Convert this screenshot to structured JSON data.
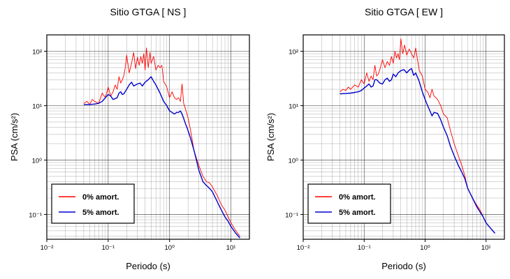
{
  "chart_data": [
    {
      "type": "line",
      "title": "Sitio GTGA [ NS ]",
      "xlabel": "Periodo (s)",
      "ylabel": "PSA (cm/s²)",
      "xscale": "log",
      "yscale": "log",
      "xlim": [
        0.01,
        20
      ],
      "ylim": [
        0.035,
        200
      ],
      "x_tick_labels": [
        "10⁻²",
        "10⁻¹",
        "10⁰",
        "10¹"
      ],
      "y_tick_labels": [
        "10⁻¹",
        "10⁰",
        "10¹",
        "10²"
      ],
      "grid": true,
      "legend_position": "bottom-left",
      "series": [
        {
          "name": "0% amort.",
          "color": "#ff0000",
          "x": [
            0.04,
            0.045,
            0.05,
            0.055,
            0.06,
            0.07,
            0.08,
            0.09,
            0.1,
            0.11,
            0.12,
            0.13,
            0.14,
            0.15,
            0.16,
            0.17,
            0.18,
            0.19,
            0.2,
            0.22,
            0.24,
            0.26,
            0.28,
            0.3,
            0.32,
            0.34,
            0.36,
            0.38,
            0.4,
            0.42,
            0.45,
            0.48,
            0.5,
            0.55,
            0.6,
            0.65,
            0.7,
            0.75,
            0.8,
            0.85,
            0.9,
            1.0,
            1.1,
            1.2,
            1.3,
            1.4,
            1.5,
            1.6,
            1.7,
            1.8,
            2.0,
            2.2,
            2.5,
            2.8,
            3.0,
            3.5,
            4.0,
            4.5,
            5.0,
            6.0,
            7.0,
            8.0,
            9.0,
            10.0,
            12.0,
            14.0
          ],
          "values": [
            11,
            12,
            10.5,
            13,
            12,
            11,
            17,
            14,
            22,
            15,
            18,
            24,
            20,
            34,
            26,
            30,
            36,
            50,
            85,
            40,
            60,
            95,
            48,
            78,
            55,
            80,
            60,
            90,
            45,
            115,
            50,
            95,
            60,
            80,
            45,
            55,
            50,
            55,
            28,
            25,
            22,
            14,
            18,
            14,
            13,
            14,
            12,
            25,
            11,
            9,
            6,
            3.5,
            1.5,
            1.0,
            0.8,
            0.5,
            0.4,
            0.38,
            0.32,
            0.22,
            0.15,
            0.12,
            0.09,
            0.07,
            0.05,
            0.04
          ]
        },
        {
          "name": "5% amort.",
          "color": "#0000cc",
          "x": [
            0.04,
            0.05,
            0.06,
            0.07,
            0.08,
            0.09,
            0.1,
            0.11,
            0.12,
            0.13,
            0.14,
            0.15,
            0.16,
            0.17,
            0.18,
            0.2,
            0.22,
            0.24,
            0.26,
            0.28,
            0.3,
            0.33,
            0.36,
            0.4,
            0.45,
            0.5,
            0.55,
            0.6,
            0.65,
            0.7,
            0.8,
            0.9,
            1.0,
            1.1,
            1.2,
            1.3,
            1.4,
            1.5,
            1.6,
            1.7,
            1.8,
            2.0,
            2.2,
            2.5,
            2.8,
            3.0,
            3.5,
            4.0,
            4.5,
            5.0,
            6.0,
            7.0,
            8.0,
            9.0,
            10.0,
            12.0,
            14.0
          ],
          "values": [
            10.5,
            10.5,
            10.7,
            11,
            12,
            14,
            16,
            15,
            13,
            13.5,
            14,
            17,
            18,
            16,
            16.5,
            20,
            24,
            27,
            23,
            24,
            25,
            26,
            23,
            27,
            30,
            34,
            28,
            24,
            20,
            17,
            12,
            10,
            8,
            7.5,
            7,
            7.5,
            7.5,
            8,
            7,
            5.8,
            4.8,
            3.5,
            2.5,
            1.5,
            0.9,
            0.65,
            0.4,
            0.34,
            0.3,
            0.26,
            0.17,
            0.12,
            0.09,
            0.075,
            0.06,
            0.045,
            0.037
          ]
        }
      ]
    },
    {
      "type": "line",
      "title": "Sitio GTGA [ EW ]",
      "xlabel": "Periodo (s)",
      "ylabel": "PSA (cm/s²)",
      "xscale": "log",
      "yscale": "log",
      "xlim": [
        0.01,
        20
      ],
      "ylim": [
        0.035,
        200
      ],
      "x_tick_labels": [
        "10⁻²",
        "10⁻¹",
        "10⁰",
        "10¹"
      ],
      "y_tick_labels": [
        "10⁻¹",
        "10⁰",
        "10¹",
        "10²"
      ],
      "grid": true,
      "legend_position": "bottom-left",
      "series": [
        {
          "name": "0% amort.",
          "color": "#ff0000",
          "x": [
            0.04,
            0.045,
            0.05,
            0.055,
            0.06,
            0.07,
            0.08,
            0.09,
            0.1,
            0.11,
            0.12,
            0.13,
            0.14,
            0.15,
            0.16,
            0.17,
            0.18,
            0.2,
            0.22,
            0.24,
            0.26,
            0.28,
            0.3,
            0.32,
            0.34,
            0.36,
            0.38,
            0.4,
            0.43,
            0.46,
            0.5,
            0.55,
            0.6,
            0.65,
            0.7,
            0.75,
            0.8,
            0.9,
            1.0,
            1.1,
            1.2,
            1.3,
            1.4,
            1.6,
            1.8,
            2.0,
            2.3,
            2.6,
            3.0,
            3.5,
            4.0,
            4.5,
            5.0,
            6.0,
            7.0,
            8.0,
            9.0,
            10.0,
            12.0,
            14.0
          ],
          "values": [
            18,
            20,
            19,
            22,
            20,
            24,
            22,
            30,
            25,
            40,
            28,
            35,
            30,
            55,
            35,
            38,
            45,
            70,
            50,
            65,
            55,
            80,
            60,
            100,
            75,
            90,
            70,
            170,
            90,
            130,
            85,
            110,
            90,
            75,
            115,
            70,
            45,
            35,
            20,
            18,
            14,
            20,
            15,
            13,
            10,
            7,
            6,
            3.5,
            2.0,
            1.2,
            0.8,
            0.5,
            0.3,
            0.2,
            0.15,
            0.12,
            0.09,
            0.07,
            0.055,
            0.045
          ]
        },
        {
          "name": "5% amort.",
          "color": "#0000cc",
          "x": [
            0.04,
            0.05,
            0.06,
            0.07,
            0.08,
            0.09,
            0.1,
            0.11,
            0.12,
            0.13,
            0.14,
            0.15,
            0.16,
            0.17,
            0.18,
            0.2,
            0.22,
            0.24,
            0.26,
            0.28,
            0.3,
            0.33,
            0.36,
            0.4,
            0.45,
            0.5,
            0.55,
            0.6,
            0.65,
            0.7,
            0.8,
            0.9,
            1.0,
            1.1,
            1.2,
            1.3,
            1.4,
            1.6,
            1.8,
            2.0,
            2.3,
            2.6,
            3.0,
            3.5,
            4.0,
            4.5,
            5.0,
            6.0,
            7.0,
            8.0,
            9.0,
            10.0,
            12.0,
            14.0
          ],
          "values": [
            16.5,
            16.7,
            17,
            17.5,
            18,
            19,
            21,
            23,
            25,
            22,
            23,
            30,
            30,
            28,
            26,
            25,
            30,
            32,
            28,
            30,
            38,
            34,
            40,
            44,
            46,
            40,
            45,
            48,
            36,
            40,
            28,
            18,
            13,
            10,
            8,
            6.5,
            7.5,
            7.2,
            5.5,
            4,
            2.8,
            1.8,
            1.2,
            0.8,
            0.6,
            0.45,
            0.3,
            0.2,
            0.14,
            0.11,
            0.09,
            0.07,
            0.055,
            0.045
          ]
        }
      ]
    }
  ]
}
